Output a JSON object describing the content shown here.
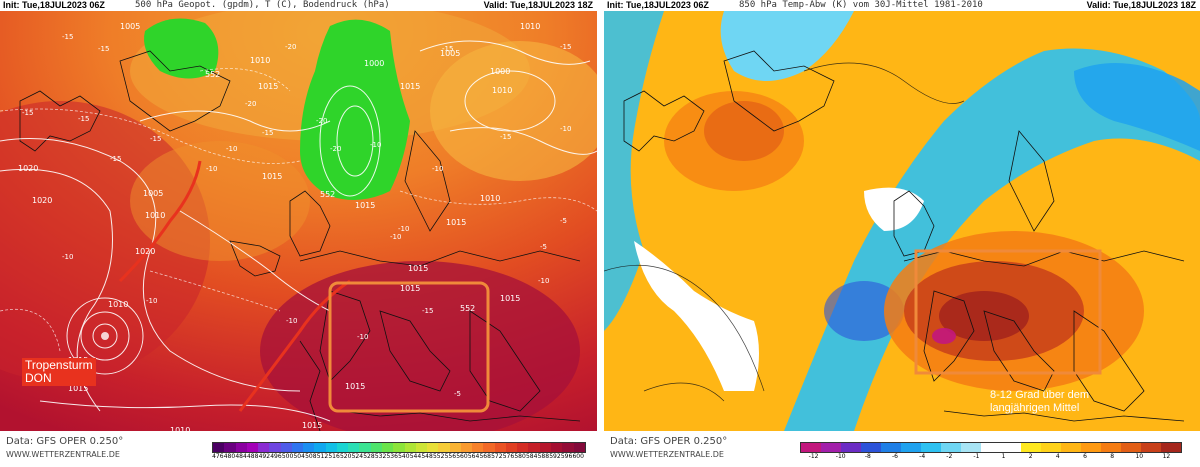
{
  "left": {
    "init": "Init: Tue,18JUL2023 06Z",
    "title": "500 hPa Geopot. (gpdm), T (C), Bodendruck (hPa)",
    "valid": "Valid: Tue,18JUL2023 18Z",
    "data_source": "Data: GFS OPER 0.250°",
    "website": "WWW.WETTERZENTRALE.DE",
    "annotation_line1": "Tropensturm",
    "annotation_line2": "DON",
    "isobar_labels": [
      "1005",
      "1010",
      "1015",
      "1000",
      "1020",
      "1005",
      "1010",
      "1015",
      "1010",
      "1015",
      "1020",
      "1010",
      "1015",
      "1000",
      "1005",
      "1010",
      "1015",
      "1015",
      "1010",
      "1020",
      "1015",
      "1015",
      "1015",
      "1015",
      "1015",
      "1010",
      "1010",
      "1015"
    ],
    "geopotential_labels": [
      "552",
      "552",
      "552"
    ],
    "temp_labels": [
      "-15",
      "-15",
      "-20",
      "-20",
      "-20",
      "-15",
      "-15",
      "-15",
      "-15",
      "-10",
      "-10",
      "-10",
      "-15",
      "-20",
      "-15",
      "-10",
      "-10",
      "-15",
      "-10",
      "-5",
      "-10",
      "-10",
      "-5",
      "-10",
      "-15",
      "-10",
      "-10",
      "-5",
      "-15",
      "-10"
    ],
    "colors": {
      "trough_green": "#2fd42a",
      "box": "#f08a3a",
      "front": "#e8321e"
    },
    "colorbar": {
      "colors": [
        "#4b0063",
        "#6a0080",
        "#8a00a0",
        "#a300b8",
        "#8a2bd2",
        "#6e45e0",
        "#4f5be8",
        "#2f74ef",
        "#1b8ff2",
        "#10a8ef",
        "#12c0e6",
        "#1ad5d2",
        "#2adfb5",
        "#3be392",
        "#4fe46c",
        "#6ae44a",
        "#8ce43a",
        "#aee536",
        "#cde536",
        "#e8e038",
        "#f6cc38",
        "#f8b334",
        "#f99a2f",
        "#f7812a",
        "#f26927",
        "#ea5324",
        "#e03f22",
        "#d42d24",
        "#c52028",
        "#b5162c",
        "#a40f31",
        "#930c36",
        "#830a3a"
      ],
      "ticks": [
        "476",
        "480",
        "484",
        "488",
        "492",
        "496",
        "500",
        "504",
        "508",
        "512",
        "516",
        "520",
        "524",
        "528",
        "532",
        "536",
        "540",
        "544",
        "548",
        "552",
        "556",
        "560",
        "564",
        "568",
        "572",
        "576",
        "580",
        "584",
        "588",
        "592",
        "596",
        "600"
      ]
    }
  },
  "right": {
    "init": "Init: Tue,18JUL2023 06Z",
    "title": "850 hPa Temp-Abw (K) vom 30J-Mittel 1981-2010",
    "valid": "Valid: Tue,18JUL2023 18Z",
    "data_source": "Data: GFS OPER 0.250°",
    "website": "WWW.WETTERZENTRALE.DE",
    "annotation_line1": "8-12 Grad über dem",
    "annotation_line2": "langjährigen Mittel",
    "colors": {
      "box": "#f08a3a"
    },
    "colorbar": {
      "colors": [
        "#c2177d",
        "#a21faa",
        "#6b2cc4",
        "#2d53d9",
        "#1f7fe6",
        "#1fa2ef",
        "#2ec1f1",
        "#6fd6f3",
        "#a8e4f4",
        "#ffffff",
        "#ffffff",
        "#ffe81f",
        "#ffd21a",
        "#ffb615",
        "#ff9a12",
        "#f57c13",
        "#e25e16",
        "#c8401a",
        "#a5261c"
      ],
      "ticks": [
        "-12",
        "-10",
        "-8",
        "-6",
        "-4",
        "-2",
        "-1",
        "1",
        "2",
        "4",
        "6",
        "8",
        "10",
        "12"
      ]
    }
  }
}
